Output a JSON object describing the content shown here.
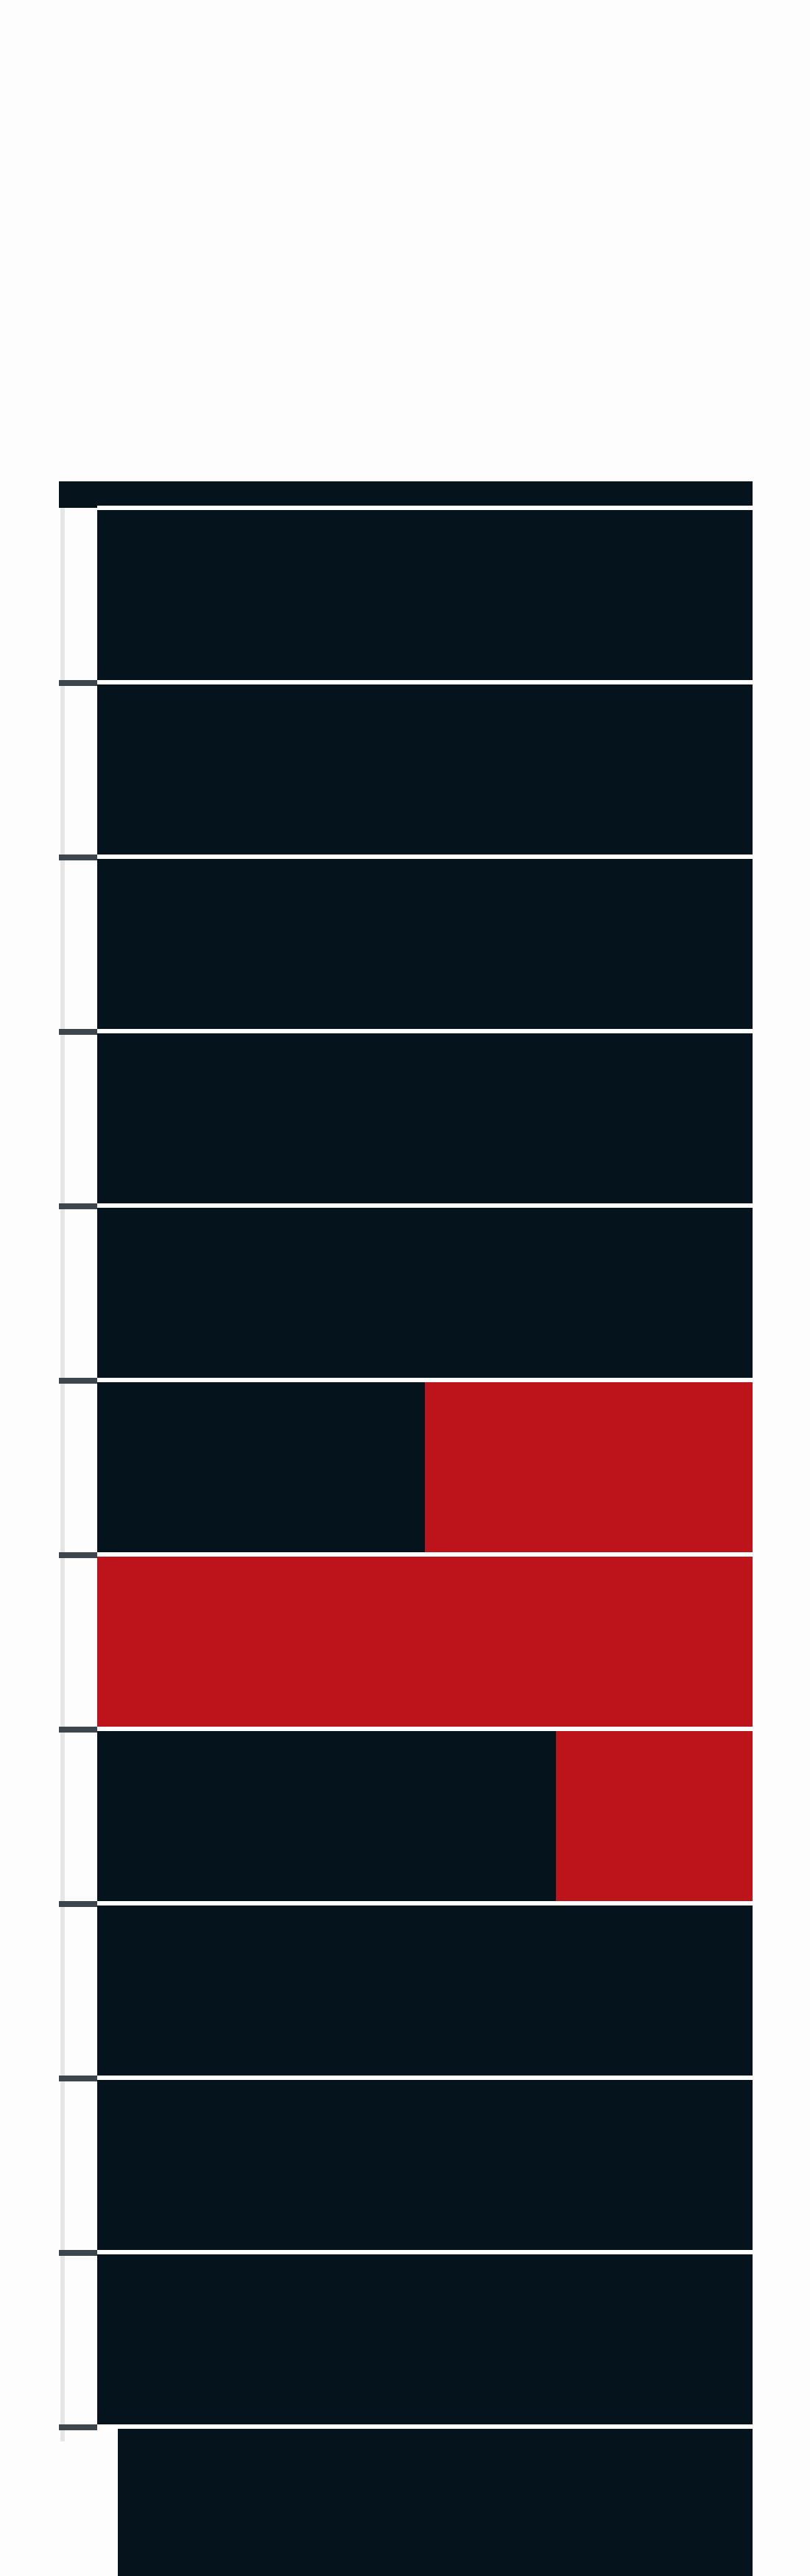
{
  "chart_data": {
    "type": "bar",
    "orientation": "horizontal",
    "stacked": true,
    "categories": [
      "",
      "",
      "",
      "",
      "",
      "",
      "",
      "",
      "",
      "",
      "",
      ""
    ],
    "series": [
      {
        "values": [
          1,
          1,
          1,
          1,
          1,
          0.5,
          0,
          0.7,
          1,
          1,
          1,
          1
        ],
        "color": "#05141c"
      },
      {
        "values": [
          0,
          0,
          0,
          0,
          0,
          0.5,
          1,
          0.3,
          0,
          0,
          0,
          0
        ],
        "color": "#bd141c"
      }
    ],
    "xlim": [
      0,
      1
    ],
    "grid": false,
    "legend": "none",
    "title": "",
    "xlabel": "",
    "ylabel": ""
  },
  "colors": {
    "background": "#fdfdfd",
    "dark": "#05141c",
    "accent": "#bd141c",
    "separator": "#ffffff",
    "tick": "#3c464c"
  }
}
